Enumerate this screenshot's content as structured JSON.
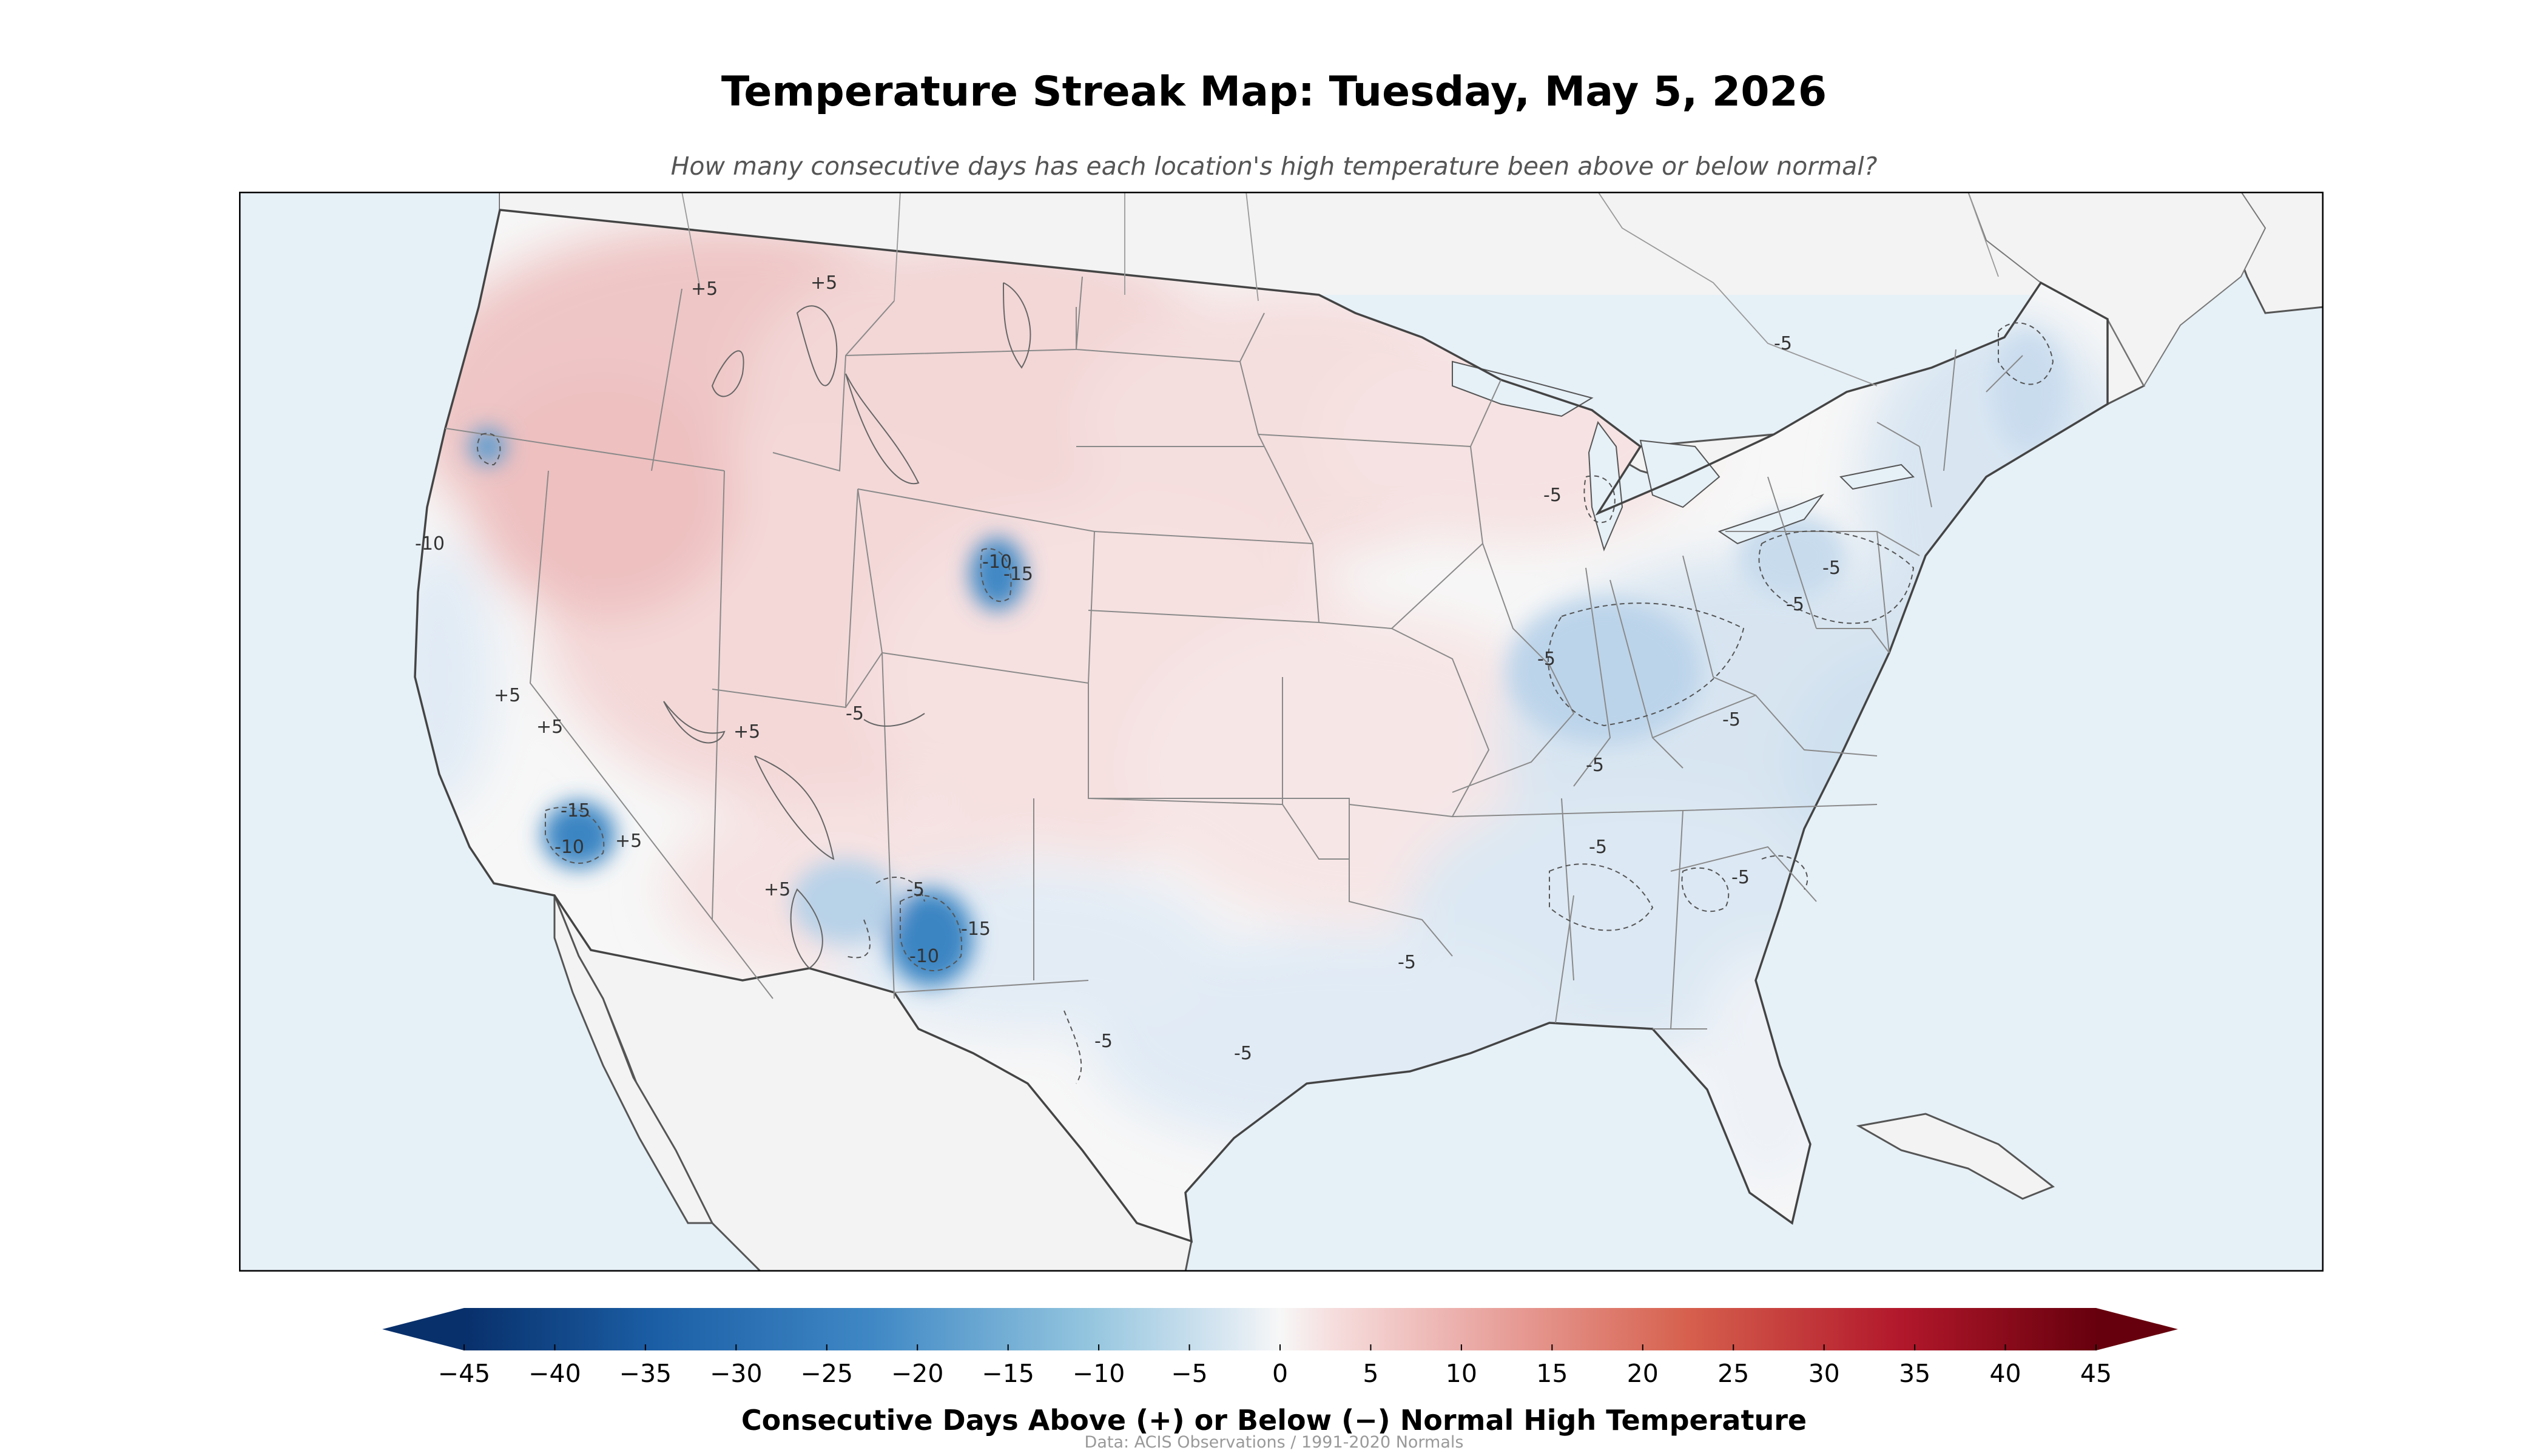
{
  "title": "Temperature Streak Map: Tuesday, May 5, 2026",
  "subtitle": "How many consecutive days has each location's high temperature been above or below normal?",
  "colorbar": {
    "label": "Consecutive Days Above (+) or Below (−) Normal High Temperature",
    "ticks": [
      "−45",
      "−40",
      "−35",
      "−30",
      "−25",
      "−20",
      "−15",
      "−10",
      "−5",
      "0",
      "5",
      "10",
      "15",
      "20",
      "25",
      "30",
      "35",
      "40",
      "45"
    ],
    "min": -45,
    "max": 45,
    "extend": "both",
    "colormap": "RdBu_r",
    "colors": {
      "neg_max": "#08306b",
      "neg_mid": "#4393c3",
      "neutral": "#f7f7f7",
      "pos_mid": "#d6604d",
      "pos_max": "#67000d"
    }
  },
  "credit": "Data: ACIS Observations / 1991-2020 Normals",
  "map": {
    "colors": {
      "ocean": "#e6f0f7",
      "land": "#f3f3f3",
      "warm_fill": "#f6dede",
      "warm_strong": "#efc4c4",
      "cool_fill": "#e0eaf4",
      "cool_strong": "#c2d8ec",
      "cool_pocket": "#2e7fbf"
    },
    "contour_labels": [
      "+5",
      "+5",
      "+5",
      "+5",
      "+5",
      "+5",
      "+5",
      "-5",
      "-5",
      "-5",
      "-5",
      "-5",
      "-5",
      "-5",
      "-5",
      "-5",
      "-5",
      "-5",
      "-5",
      "-5",
      "-10",
      "-15",
      "-10",
      "-15",
      "-10",
      "-15",
      "-10",
      "-5"
    ]
  }
}
